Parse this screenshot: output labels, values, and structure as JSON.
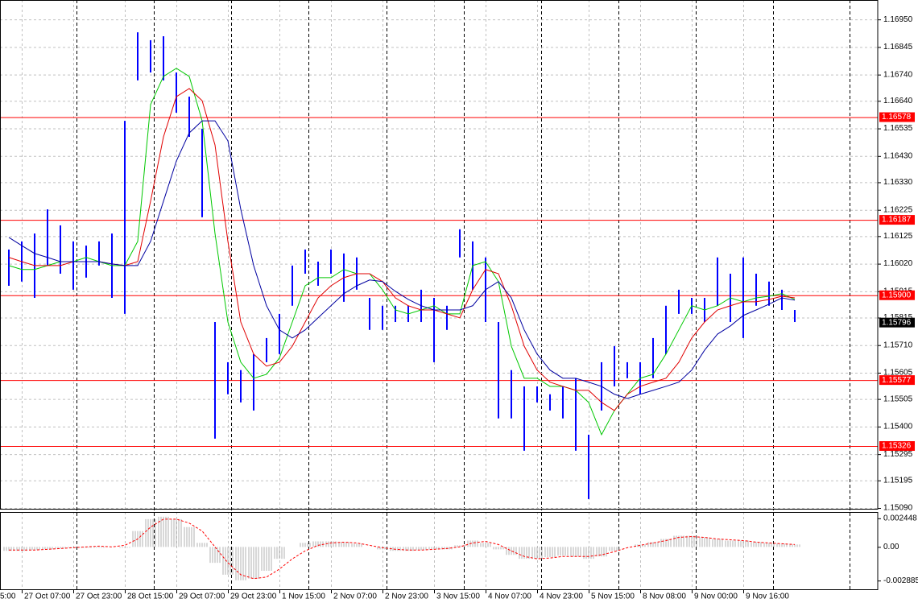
{
  "chart_data": [
    {
      "type": "ohlc",
      "categories": [
        "5:00",
        null,
        null,
        null,
        "27 Oct 07:00",
        null,
        null,
        null,
        "27 Oct 23:00",
        null,
        null,
        null,
        "28 Oct 15:00",
        null,
        null,
        null,
        "29 Oct 07:00",
        null,
        null,
        null,
        "29 Oct 23:00",
        null,
        null,
        null,
        "1 Nov 15:00",
        null,
        null,
        null,
        "2 Nov 07:00",
        null,
        null,
        null,
        "2 Nov 23:00",
        null,
        null,
        null,
        "3 Nov 15:00",
        null,
        null,
        null,
        "4 Nov 07:00",
        null,
        null,
        null,
        "4 Nov 23:00",
        null,
        null,
        null,
        "5 Nov 15:00",
        null,
        null,
        null,
        "8 Nov 08:00",
        null,
        null,
        null,
        "9 Nov 00:00",
        null,
        null,
        null,
        "9 Nov 16:00",
        null,
        null,
        null,
        null
      ],
      "color": "#0000ff",
      "high": [
        null,
        null,
        null,
        1.16074,
        1.16105,
        1.16135,
        1.16227,
        1.16166,
        1.16105,
        1.16089,
        1.16105,
        1.16135,
        1.16564,
        1.16901,
        1.16871,
        1.16886,
        1.16748,
        1.16656,
        1.16534,
        1.15798,
        1.15645,
        1.15615,
        1.15676,
        1.15737,
        1.15829,
        1.16013,
        1.16074,
        1.16028,
        1.16074,
        1.16059,
        1.16044,
        1.1589,
        1.1586,
        1.1586,
        1.1586,
        1.15921,
        1.1589,
        1.1586,
        1.16151,
        1.16105,
        1.16044,
        1.15798,
        1.15615,
        1.15553,
        1.15553,
        1.15523,
        1.15553,
        1.15584,
        1.15369,
        1.15645,
        1.15706,
        1.15645,
        1.15645,
        1.15737,
        1.1586,
        1.15921,
        1.1589,
        1.1589,
        1.16044,
        1.15982,
        1.16044,
        1.15982,
        1.15952,
        1.15921,
        1.15844
      ],
      "low": [
        null,
        null,
        null,
        1.15936,
        1.15952,
        1.1589,
        1.16013,
        1.15982,
        1.15921,
        1.15967,
        1.16013,
        1.1589,
        1.15829,
        1.16718,
        1.16748,
        1.16718,
        1.16595,
        1.16503,
        1.16197,
        1.15354,
        1.15523,
        1.15492,
        1.15461,
        1.15645,
        1.15676,
        1.1586,
        1.15982,
        1.15936,
        1.15982,
        1.15875,
        1.15921,
        1.15768,
        1.15768,
        1.15798,
        1.15798,
        1.15798,
        1.15645,
        1.15768,
        1.16044,
        1.15921,
        1.15798,
        1.15431,
        1.15431,
        1.15308,
        1.15492,
        1.15461,
        1.15431,
        1.15308,
        1.15124,
        1.15461,
        1.15553,
        1.15584,
        1.15523,
        1.15584,
        1.15676,
        1.15829,
        1.15829,
        1.15798,
        1.1586,
        1.15798,
        1.15737,
        1.1586,
        1.1586,
        1.15844,
        1.15798
      ],
      "moving_averages": [
        {
          "color": "#00c800",
          "values": [
            null,
            null,
            null,
            1.16013,
            1.15998,
            1.15998,
            1.16013,
            1.16028,
            1.16028,
            1.16044,
            1.16028,
            1.16013,
            1.16013,
            1.16105,
            1.16626,
            1.16733,
            1.16764,
            1.16733,
            1.16564,
            1.16135,
            1.15798,
            1.15645,
            1.15584,
            1.15599,
            1.15661,
            1.15798,
            1.15936,
            1.15967,
            1.15967,
            1.15998,
            1.15982,
            1.15982,
            1.15921,
            1.15844,
            1.15829,
            1.15844,
            1.1586,
            1.15829,
            1.15829,
            1.16013,
            1.16028,
            1.15952,
            1.15706,
            1.15584,
            1.15584,
            1.15553,
            1.15553,
            1.15538,
            1.15492,
            1.15369,
            1.15461,
            1.15523,
            1.15584,
            1.15599,
            1.15676,
            1.15768,
            1.1586,
            1.15844,
            1.1586,
            1.1589,
            1.15875,
            1.1589,
            1.15896,
            1.15906,
            1.15884
          ]
        },
        {
          "color": "#e00000",
          "values": [
            null,
            null,
            null,
            1.16044,
            1.16028,
            1.16013,
            1.16013,
            1.16013,
            1.16028,
            1.16028,
            1.16028,
            1.16019,
            1.16013,
            1.16028,
            1.16258,
            1.16503,
            1.16656,
            1.16687,
            1.16641,
            1.16472,
            1.16105,
            1.15798,
            1.15676,
            1.1563,
            1.15645,
            1.15706,
            1.15798,
            1.1589,
            1.15936,
            1.15967,
            1.15982,
            1.15982,
            1.15952,
            1.1589,
            1.1586,
            1.15844,
            1.15844,
            1.15829,
            1.15814,
            1.15921,
            1.15998,
            1.15982,
            1.1586,
            1.15706,
            1.15615,
            1.15569,
            1.15553,
            1.15538,
            1.15538,
            1.15492,
            1.15461,
            1.15523,
            1.15553,
            1.15569,
            1.15584,
            1.15645,
            1.15737,
            1.15798,
            1.15844,
            1.1586,
            1.15875,
            1.15875,
            1.15884,
            1.15896,
            1.1589
          ]
        },
        {
          "color": "#0000a0",
          "values": [
            null,
            null,
            null,
            1.1612,
            1.16089,
            1.16059,
            1.16044,
            1.16028,
            1.16028,
            1.16028,
            1.16028,
            1.16019,
            1.16013,
            1.16013,
            1.16105,
            1.16258,
            1.16411,
            1.16518,
            1.16564,
            1.16564,
            1.16488,
            1.16227,
            1.16013,
            1.1586,
            1.15768,
            1.15737,
            1.15768,
            1.15814,
            1.1586,
            1.15906,
            1.15936,
            1.15958,
            1.15952,
            1.15915,
            1.15884,
            1.1586,
            1.15844,
            1.15844,
            1.15844,
            1.1586,
            1.15921,
            1.15952,
            1.1589,
            1.15768,
            1.15676,
            1.15615,
            1.15584,
            1.15584,
            1.15569,
            1.15553,
            1.15523,
            1.15507,
            1.15523,
            1.15538,
            1.15553,
            1.15569,
            1.15615,
            1.15691,
            1.15752,
            1.15783,
            1.15823,
            1.15844,
            1.15866,
            1.1589,
            1.15881
          ]
        }
      ],
      "levels": [
        1.16578,
        1.16187,
        {
          "value": 1.159,
          "label": "1.15900"
        },
        1.15577,
        1.15326
      ],
      "level_color": "#ff0000",
      "current_price": 1.15796,
      "ylim": [
        1.15087,
        1.17024
      ],
      "yticks": [
        {
          "value": 1.1695,
          "label": "1.16950"
        },
        1.16845,
        {
          "value": 1.1674,
          "label": "1.16740"
        },
        {
          "value": 1.1664,
          "label": "1.16640"
        },
        1.16535,
        {
          "value": 1.1643,
          "label": "1.16430"
        },
        {
          "value": 1.1633,
          "label": "1.16330"
        },
        1.16225,
        1.16125,
        {
          "value": 1.1602,
          "label": "1.16020"
        },
        1.15915,
        1.15815,
        {
          "value": 1.1571,
          "label": "1.15710"
        },
        1.15605,
        1.15505,
        {
          "value": 1.154,
          "label": "1.15400"
        },
        1.15295,
        1.15195,
        {
          "value": 1.1509,
          "label": "1.15090"
        }
      ],
      "grid": true
    },
    {
      "type": "macd",
      "histogram_color": "#b0b0b0",
      "signal_color": "#ff0000",
      "histogram": [
        null,
        null,
        null,
        -0.00034,
        -0.00034,
        -0.000272,
        -0.000204,
        -0.000136,
        -6.8e-05,
        -6.8e-05,
        -6.8e-05,
        0,
        -6.8e-05,
        0.00136,
        0.00238,
        0.002584,
        0.00238,
        0.0017,
        0.00034,
        -0.00136,
        -0.00238,
        -0.002856,
        -0.00272,
        -0.00204,
        -0.00102,
        0,
        0.00034,
        0.000476,
        0.000476,
        0.000408,
        0.000272,
        0,
        -0.000204,
        -0.00034,
        -0.00034,
        -0.000272,
        -0.000204,
        -0.000204,
        0.000136,
        0.000544,
        0.00034,
        -0.000204,
        -0.00068,
        -0.00102,
        -0.00102,
        -0.000884,
        -0.000748,
        -0.000816,
        -0.00102,
        -0.000816,
        -0.00034,
        0,
        0.000204,
        0.000408,
        0.00068,
        0.000952,
        0.000952,
        0.000816,
        0.00068,
        0.000544,
        0.000544,
        0.000408,
        0.00034,
        0.000272,
        0.000204
      ],
      "signal": [
        null,
        null,
        null,
        -0.000272,
        -0.000272,
        -0.000272,
        -0.000204,
        -0.000136,
        -6.8e-05,
        0,
        6.8e-05,
        0,
        0.000136,
        0.00068,
        0.0017,
        0.00238,
        0.00238,
        0.00204,
        0.00136,
        0,
        -0.00136,
        -0.00238,
        -0.00272,
        -0.002584,
        -0.001904,
        -0.00102,
        -0.00034,
        0.000136,
        0.00034,
        0.000408,
        0.00034,
        0.000136,
        -6.8e-05,
        -0.000204,
        -0.000272,
        -0.000272,
        -0.000204,
        -0.000136,
        0,
        0.00034,
        0.000476,
        0.000204,
        -0.00034,
        -0.000816,
        -0.00102,
        -0.000952,
        -0.000816,
        -0.000816,
        -0.000816,
        -0.00068,
        -0.000408,
        -6.8e-05,
        0.000136,
        0.00034,
        0.000544,
        0.000816,
        0.000884,
        0.000816,
        0.00068,
        0.000612,
        0.000544,
        0.000408,
        0.00034,
        0.000272,
        0.000204
      ],
      "ylim": [
        -0.00363,
        0.00299
      ],
      "yticks": [
        0.002448,
        {
          "value": 0,
          "label": "0.00"
        },
        -0.002885
      ]
    }
  ]
}
